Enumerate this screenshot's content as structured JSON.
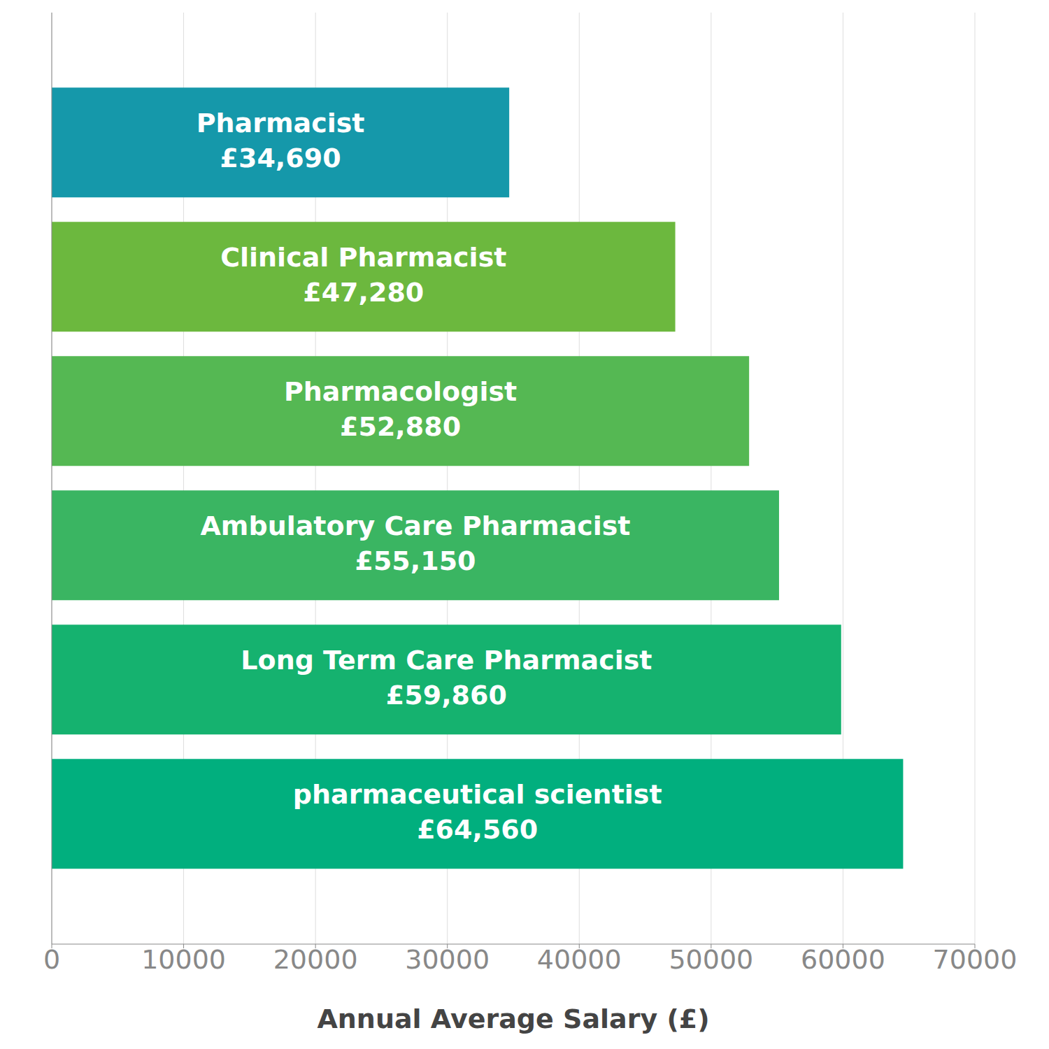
{
  "chart_data": {
    "type": "bar",
    "orientation": "horizontal",
    "categories": [
      "Pharmacist",
      "Clinical Pharmacist",
      "Pharmacologist",
      "Ambulatory Care Pharmacist",
      "Long Term Care Pharmacist",
      "pharmaceutical scientist"
    ],
    "values": [
      34690,
      47280,
      52880,
      55150,
      59860,
      64560
    ],
    "value_labels": [
      "£34,690",
      "£47,280",
      "£52,880",
      "£55,150",
      "£59,860",
      "£64,560"
    ],
    "colors": [
      "#1598aa",
      "#6cb83e",
      "#55b853",
      "#3ab562",
      "#15b26f",
      "#01af7e"
    ],
    "xlabel": "Annual Average Salary (£)",
    "xlim": [
      0,
      70000
    ],
    "xticks": [
      0,
      10000,
      20000,
      30000,
      40000,
      50000,
      60000,
      70000
    ],
    "grid": true,
    "data_labels": true,
    "tick_labels": "x"
  }
}
